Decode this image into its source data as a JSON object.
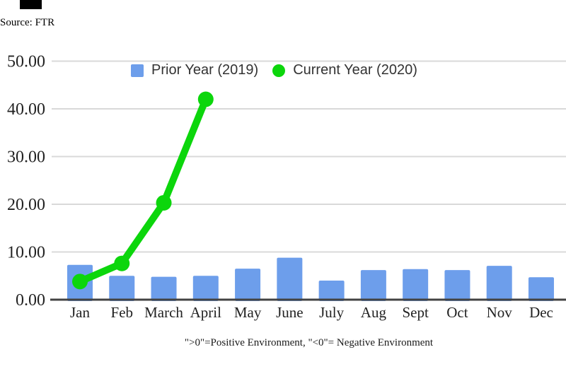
{
  "source_note": "Source: FTR",
  "caption": "\">0\"=Positive Environment, \"<0\"= Negative Environment",
  "style": {
    "bar_color": "#6d9eeb",
    "line_color": "#0cd60c",
    "grid_color": "#d9d9d9",
    "axis_color": "#424242",
    "tick_text_color": "#222222",
    "legend_text_color": "#333333"
  },
  "chart_data": {
    "type": "combo bar+line",
    "categories": [
      "Jan",
      "Feb",
      "March",
      "April",
      "May",
      "June",
      "July",
      "Aug",
      "Sept",
      "Oct",
      "Nov",
      "Dec"
    ],
    "series": [
      {
        "name": "Prior Year (2019)",
        "type": "bar",
        "color": "#6d9eeb",
        "values": [
          7.3,
          5.0,
          4.8,
          5.0,
          6.5,
          8.8,
          4.0,
          6.2,
          6.4,
          6.2,
          7.1,
          4.7
        ]
      },
      {
        "name": "Current Year (2020)",
        "type": "line",
        "color": "#0cd60c",
        "values": [
          3.8,
          7.6,
          20.3,
          42.0,
          null,
          null,
          null,
          null,
          null,
          null,
          null,
          null
        ]
      }
    ],
    "y_axis": {
      "ticks": [
        "0.00",
        "10.00",
        "20.00",
        "30.00",
        "40.00",
        "50.00"
      ],
      "min": 0,
      "max": 50,
      "tick_step": 10
    },
    "grid": true,
    "legend_position": "top",
    "title": "",
    "xlabel": "",
    "ylabel": ""
  }
}
